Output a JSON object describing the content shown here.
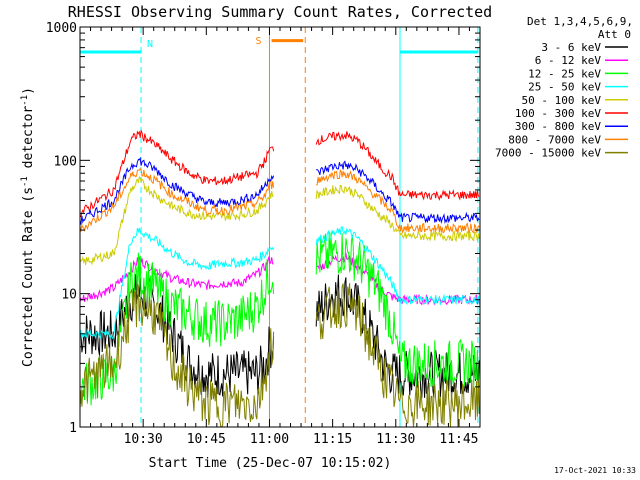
{
  "chart_data": {
    "type": "line",
    "title": "RHESSI Observing Summary Count Rates, Corrected",
    "xlabel": "Start Time (25-Dec-07 10:15:02)",
    "ylabel_main": "Corrected Count Rate (s",
    "ylabel_exp1": "-1",
    "ylabel_mid": " detector",
    "ylabel_exp2": "-1",
    "ylabel_end": ")",
    "yscale": "log",
    "ylim": [
      1,
      1000
    ],
    "xlim_minutes": [
      0,
      95
    ],
    "x_ticks": [
      {
        "label": "10:30",
        "t": 15
      },
      {
        "label": "10:45",
        "t": 30
      },
      {
        "label": "11:00",
        "t": 45
      },
      {
        "label": "11:15",
        "t": 60
      },
      {
        "label": "11:30",
        "t": 75
      },
      {
        "label": "11:45",
        "t": 90
      }
    ],
    "y_ticks": [
      {
        "label": "1",
        "v": 1
      },
      {
        "label": "10",
        "v": 10
      },
      {
        "label": "100",
        "v": 100
      },
      {
        "label": "1000",
        "v": 1000
      }
    ],
    "legend_header": [
      "Det 1,3,4,5,6,9,",
      "Att 0"
    ],
    "legend_position": "right",
    "data_gap_minutes": [
      46,
      56
    ],
    "series": [
      {
        "name": "3 - 6 keV",
        "color": "#000000",
        "points": [
          [
            0,
            5
          ],
          [
            8,
            5
          ],
          [
            12,
            9
          ],
          [
            14,
            10
          ],
          [
            18,
            8
          ],
          [
            22,
            5
          ],
          [
            26,
            3
          ],
          [
            30,
            2.5
          ],
          [
            34,
            2.5
          ],
          [
            38,
            2.5
          ],
          [
            42,
            2.5
          ],
          [
            44,
            3
          ],
          [
            45,
            4
          ],
          [
            56,
            7
          ],
          [
            60,
            10
          ],
          [
            63,
            10
          ],
          [
            66,
            8
          ],
          [
            68,
            6
          ],
          [
            70,
            4.5
          ],
          [
            72,
            3
          ],
          [
            74,
            2.5
          ],
          [
            76,
            2.5
          ],
          [
            95,
            2.5
          ]
        ]
      },
      {
        "name": "6 - 12 keV",
        "color": "#ff00ff",
        "points": [
          [
            0,
            9
          ],
          [
            8,
            11
          ],
          [
            12,
            15
          ],
          [
            14,
            18
          ],
          [
            18,
            15
          ],
          [
            22,
            13
          ],
          [
            26,
            12
          ],
          [
            30,
            11.5
          ],
          [
            34,
            12
          ],
          [
            38,
            12
          ],
          [
            42,
            14
          ],
          [
            44,
            16
          ],
          [
            45,
            18
          ],
          [
            56,
            15
          ],
          [
            60,
            18
          ],
          [
            63,
            19
          ],
          [
            66,
            16
          ],
          [
            68,
            14
          ],
          [
            70,
            12
          ],
          [
            72,
            10.5
          ],
          [
            74,
            9.5
          ],
          [
            76,
            9
          ],
          [
            95,
            9
          ]
        ]
      },
      {
        "name": "12 - 25 keV",
        "color": "#00ff00",
        "points": [
          [
            0,
            2
          ],
          [
            8,
            2.5
          ],
          [
            12,
            12
          ],
          [
            14,
            14
          ],
          [
            18,
            11
          ],
          [
            22,
            8
          ],
          [
            26,
            7
          ],
          [
            30,
            6
          ],
          [
            34,
            6
          ],
          [
            38,
            6.5
          ],
          [
            42,
            8
          ],
          [
            44,
            11
          ],
          [
            45,
            14
          ],
          [
            56,
            18
          ],
          [
            60,
            20
          ],
          [
            63,
            21
          ],
          [
            66,
            18
          ],
          [
            68,
            15
          ],
          [
            70,
            12
          ],
          [
            72,
            9
          ],
          [
            74,
            6
          ],
          [
            76,
            3
          ],
          [
            95,
            3
          ]
        ]
      },
      {
        "name": "25 - 50 keV",
        "color": "#00ffff",
        "points": [
          [
            0,
            5
          ],
          [
            8,
            5
          ],
          [
            12,
            25
          ],
          [
            14,
            30
          ],
          [
            18,
            25
          ],
          [
            22,
            20
          ],
          [
            26,
            17
          ],
          [
            30,
            16
          ],
          [
            34,
            17
          ],
          [
            38,
            17
          ],
          [
            42,
            18
          ],
          [
            44,
            20
          ],
          [
            45,
            22
          ],
          [
            56,
            25
          ],
          [
            60,
            28
          ],
          [
            63,
            30
          ],
          [
            66,
            26
          ],
          [
            68,
            22
          ],
          [
            70,
            18
          ],
          [
            72,
            15
          ],
          [
            74,
            12
          ],
          [
            76,
            9
          ],
          [
            95,
            9
          ]
        ]
      },
      {
        "name": "50 - 100 keV",
        "color": "#cccc00",
        "points": [
          [
            0,
            17
          ],
          [
            8,
            20
          ],
          [
            12,
            60
          ],
          [
            14,
            70
          ],
          [
            18,
            55
          ],
          [
            22,
            45
          ],
          [
            26,
            40
          ],
          [
            30,
            38
          ],
          [
            34,
            38
          ],
          [
            38,
            39
          ],
          [
            42,
            42
          ],
          [
            44,
            48
          ],
          [
            45,
            55
          ],
          [
            56,
            55
          ],
          [
            60,
            60
          ],
          [
            63,
            62
          ],
          [
            66,
            55
          ],
          [
            68,
            48
          ],
          [
            70,
            42
          ],
          [
            72,
            37
          ],
          [
            74,
            33
          ],
          [
            76,
            27
          ],
          [
            95,
            27
          ]
        ]
      },
      {
        "name": "100 - 300 keV",
        "color": "#ff0000",
        "points": [
          [
            0,
            40
          ],
          [
            8,
            60
          ],
          [
            12,
            140
          ],
          [
            14,
            160
          ],
          [
            18,
            130
          ],
          [
            22,
            100
          ],
          [
            26,
            80
          ],
          [
            30,
            70
          ],
          [
            34,
            70
          ],
          [
            38,
            75
          ],
          [
            42,
            80
          ],
          [
            44,
            100
          ],
          [
            45,
            120
          ],
          [
            56,
            140
          ],
          [
            60,
            150
          ],
          [
            63,
            155
          ],
          [
            66,
            140
          ],
          [
            68,
            120
          ],
          [
            70,
            100
          ],
          [
            72,
            85
          ],
          [
            74,
            75
          ],
          [
            76,
            55
          ],
          [
            95,
            55
          ]
        ]
      },
      {
        "name": "300 - 800 keV",
        "color": "#0000ff",
        "points": [
          [
            0,
            35
          ],
          [
            8,
            50
          ],
          [
            12,
            90
          ],
          [
            14,
            100
          ],
          [
            18,
            85
          ],
          [
            22,
            65
          ],
          [
            26,
            55
          ],
          [
            30,
            48
          ],
          [
            34,
            48
          ],
          [
            38,
            50
          ],
          [
            42,
            55
          ],
          [
            44,
            65
          ],
          [
            45,
            75
          ],
          [
            56,
            80
          ],
          [
            60,
            90
          ],
          [
            63,
            92
          ],
          [
            66,
            85
          ],
          [
            68,
            75
          ],
          [
            70,
            65
          ],
          [
            72,
            55
          ],
          [
            74,
            48
          ],
          [
            76,
            37
          ],
          [
            95,
            37
          ]
        ]
      },
      {
        "name": "800 - 7000 keV",
        "color": "#ff8000",
        "points": [
          [
            0,
            30
          ],
          [
            8,
            45
          ],
          [
            12,
            75
          ],
          [
            14,
            85
          ],
          [
            18,
            70
          ],
          [
            22,
            55
          ],
          [
            26,
            48
          ],
          [
            30,
            42
          ],
          [
            34,
            42
          ],
          [
            38,
            44
          ],
          [
            42,
            48
          ],
          [
            44,
            55
          ],
          [
            45,
            65
          ],
          [
            56,
            70
          ],
          [
            60,
            78
          ],
          [
            63,
            80
          ],
          [
            66,
            72
          ],
          [
            68,
            62
          ],
          [
            70,
            55
          ],
          [
            72,
            48
          ],
          [
            74,
            42
          ],
          [
            76,
            31
          ],
          [
            95,
            31
          ]
        ]
      },
      {
        "name": "7000 - 15000 keV",
        "color": "#808000",
        "points": [
          [
            0,
            2
          ],
          [
            8,
            3
          ],
          [
            12,
            7
          ],
          [
            14,
            8.5
          ],
          [
            18,
            7
          ],
          [
            22,
            3
          ],
          [
            26,
            2
          ],
          [
            30,
            1.5
          ],
          [
            34,
            1.5
          ],
          [
            38,
            1.5
          ],
          [
            42,
            1.5
          ],
          [
            44,
            2.5
          ],
          [
            45,
            4
          ],
          [
            56,
            6
          ],
          [
            60,
            8
          ],
          [
            63,
            8.5
          ],
          [
            66,
            7
          ],
          [
            68,
            5
          ],
          [
            70,
            3.5
          ],
          [
            72,
            2.5
          ],
          [
            74,
            2
          ],
          [
            76,
            1.5
          ],
          [
            95,
            1.5
          ]
        ]
      }
    ],
    "flag_lines": [
      {
        "label": "",
        "color": "#00ffff",
        "t": 0
      },
      {
        "label": "N",
        "color": "#00ffff",
        "t": 14.5
      },
      {
        "label": "",
        "color": "#00ffff",
        "t": 76
      },
      {
        "label": "",
        "color": "#00ffff",
        "t": 94.5
      },
      {
        "label": "S",
        "color": "#ff8000",
        "t": 45
      },
      {
        "label": "",
        "color": "#ff8000",
        "t": 53.5
      }
    ],
    "flag_bars": [
      {
        "name": "night",
        "color": "#00ffff",
        "t0": 0,
        "t1": 14.5,
        "v": 650
      },
      {
        "name": "saa",
        "color": "#ff8000",
        "t0": 45.5,
        "t1": 53,
        "v": 790
      },
      {
        "name": "night-2",
        "color": "#00ffff",
        "t0": 76,
        "t1": 94.5,
        "v": 650
      }
    ],
    "timestamp": "17-Oct-2021 10:33"
  }
}
